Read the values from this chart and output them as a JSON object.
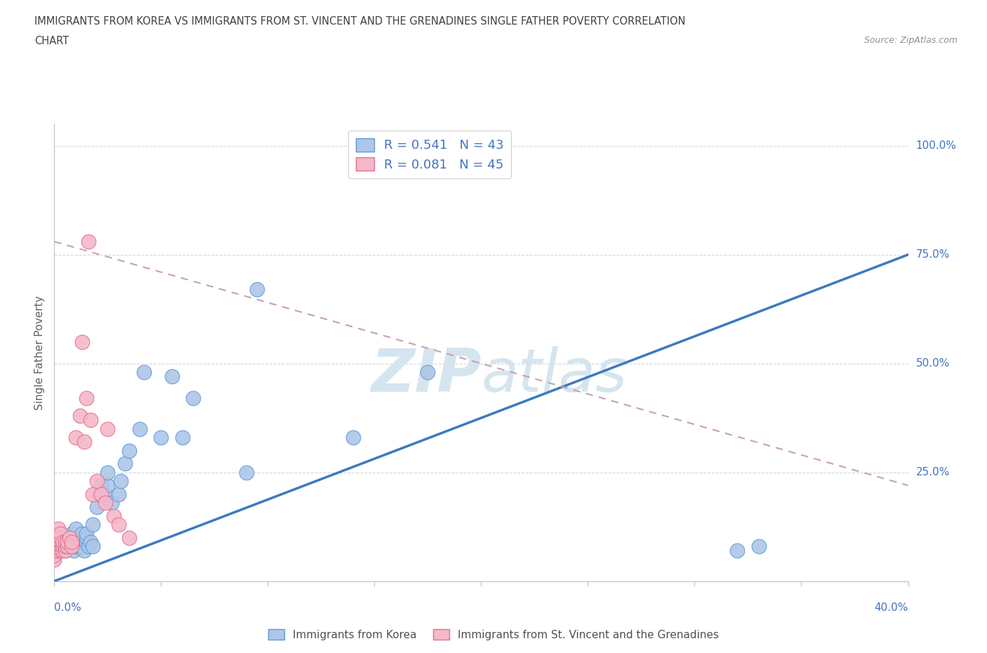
{
  "title_line1": "IMMIGRANTS FROM KOREA VS IMMIGRANTS FROM ST. VINCENT AND THE GRENADINES SINGLE FATHER POVERTY CORRELATION",
  "title_line2": "CHART",
  "source_text": "Source: ZipAtlas.com",
  "ylabel_label": "Single Father Poverty",
  "korea_R": 0.541,
  "korea_N": 43,
  "svg_R": 0.081,
  "svg_N": 45,
  "xlim": [
    0.0,
    0.4
  ],
  "ylim": [
    0.0,
    1.05
  ],
  "korea_color": "#aec6e8",
  "korea_edge_color": "#5b9bd5",
  "korea_line_color": "#3a7abf",
  "svg_color": "#f4b8c8",
  "svg_edge_color": "#e07090",
  "svg_line_color": "#d05878",
  "dash_line_color": "#c8a0b0",
  "watermark_color": "#d5e5f0",
  "legend_text_color": "#4472c4",
  "title_color": "#404040",
  "axis_label_color": "#4472c4",
  "ylabel_color": "#606060",
  "korea_line_y0": 0.0,
  "korea_line_y1": 0.75,
  "svg_line_y0": 0.78,
  "svg_line_y1": 0.22,
  "korea_x": [
    0.005,
    0.005,
    0.005,
    0.007,
    0.008,
    0.009,
    0.01,
    0.01,
    0.01,
    0.012,
    0.013,
    0.013,
    0.014,
    0.015,
    0.015,
    0.015,
    0.016,
    0.017,
    0.018,
    0.018,
    0.02,
    0.021,
    0.022,
    0.024,
    0.025,
    0.025,
    0.027,
    0.03,
    0.031,
    0.033,
    0.035,
    0.04,
    0.042,
    0.05,
    0.055,
    0.06,
    0.065,
    0.09,
    0.095,
    0.14,
    0.175,
    0.32,
    0.33
  ],
  "korea_y": [
    0.07,
    0.08,
    0.09,
    0.1,
    0.11,
    0.07,
    0.08,
    0.1,
    0.12,
    0.08,
    0.09,
    0.11,
    0.07,
    0.09,
    0.1,
    0.11,
    0.08,
    0.09,
    0.08,
    0.13,
    0.17,
    0.2,
    0.22,
    0.2,
    0.22,
    0.25,
    0.18,
    0.2,
    0.23,
    0.27,
    0.3,
    0.35,
    0.48,
    0.33,
    0.47,
    0.33,
    0.42,
    0.25,
    0.67,
    0.33,
    0.48,
    0.07,
    0.08
  ],
  "svg_x": [
    0.0,
    0.0,
    0.0,
    0.0,
    0.0,
    0.001,
    0.001,
    0.001,
    0.001,
    0.002,
    0.002,
    0.002,
    0.002,
    0.002,
    0.003,
    0.003,
    0.003,
    0.003,
    0.003,
    0.004,
    0.004,
    0.004,
    0.005,
    0.005,
    0.005,
    0.006,
    0.006,
    0.007,
    0.008,
    0.008,
    0.01,
    0.012,
    0.013,
    0.014,
    0.015,
    0.016,
    0.017,
    0.018,
    0.02,
    0.022,
    0.024,
    0.025,
    0.028,
    0.03,
    0.035
  ],
  "svg_y": [
    0.05,
    0.06,
    0.07,
    0.08,
    0.09,
    0.07,
    0.08,
    0.09,
    0.1,
    0.08,
    0.09,
    0.1,
    0.11,
    0.12,
    0.07,
    0.08,
    0.09,
    0.1,
    0.11,
    0.07,
    0.08,
    0.09,
    0.07,
    0.08,
    0.09,
    0.08,
    0.09,
    0.1,
    0.08,
    0.09,
    0.33,
    0.38,
    0.55,
    0.32,
    0.42,
    0.78,
    0.37,
    0.2,
    0.23,
    0.2,
    0.18,
    0.35,
    0.15,
    0.13,
    0.1
  ]
}
